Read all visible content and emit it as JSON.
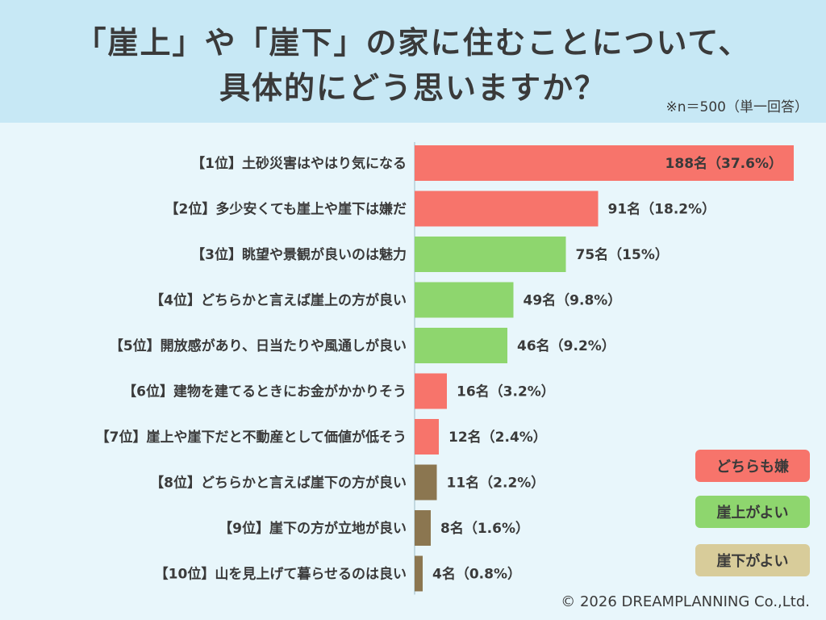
{
  "title_line1": "「崖上」や「崖下」の家に住むことについて、",
  "title_line2": "具体的にどう思いますか？",
  "sample_note": "※n＝500（単一回答）",
  "copyright": "© 2026 DREAMPLANNING Co.,Ltd.",
  "legend": [
    {
      "label": "どちらも嫌",
      "color": "#f7746b"
    },
    {
      "label": "崖上がよい",
      "color": "#8ed66e"
    },
    {
      "label": "崖下がよい",
      "color": "#d8cc9a"
    }
  ],
  "colors": {
    "both_dislike": "#f7746b",
    "above": "#8ed66e",
    "below": "#8b7650"
  },
  "chart_data": {
    "type": "bar",
    "orientation": "horizontal",
    "categories": [
      "【1位】土砂災害はやはり気になる",
      "【2位】多少安くても崖上や崖下は嫌だ",
      "【3位】眺望や景観が良いのは魅力",
      "【4位】どちらかと言えば崖上の方が良い",
      "【5位】開放感があり、日当たりや風通しが良い",
      "【6位】建物を建てるときにお金がかかりそう",
      "【7位】崖上や崖下だと不動産として価値が低そう",
      "【8位】どちらかと言えば崖下の方が良い",
      "【9位】崖下の方が立地が良い",
      "【10位】山を見上げて暮らせるのは良い"
    ],
    "values": [
      188,
      91,
      75,
      49,
      46,
      16,
      12,
      11,
      8,
      4
    ],
    "value_labels": [
      "188名（37.6%）",
      "91名（18.2%）",
      "75名（15%）",
      "49名（9.8%）",
      "46名（9.2%）",
      "16名（3.2%）",
      "12名（2.4%）",
      "11名（2.2%）",
      "8名（1.6%）",
      "4名（0.8%）"
    ],
    "groups": [
      "both_dislike",
      "both_dislike",
      "above",
      "above",
      "above",
      "both_dislike",
      "both_dislike",
      "below",
      "below",
      "below"
    ],
    "xlim": [
      0,
      188
    ]
  }
}
